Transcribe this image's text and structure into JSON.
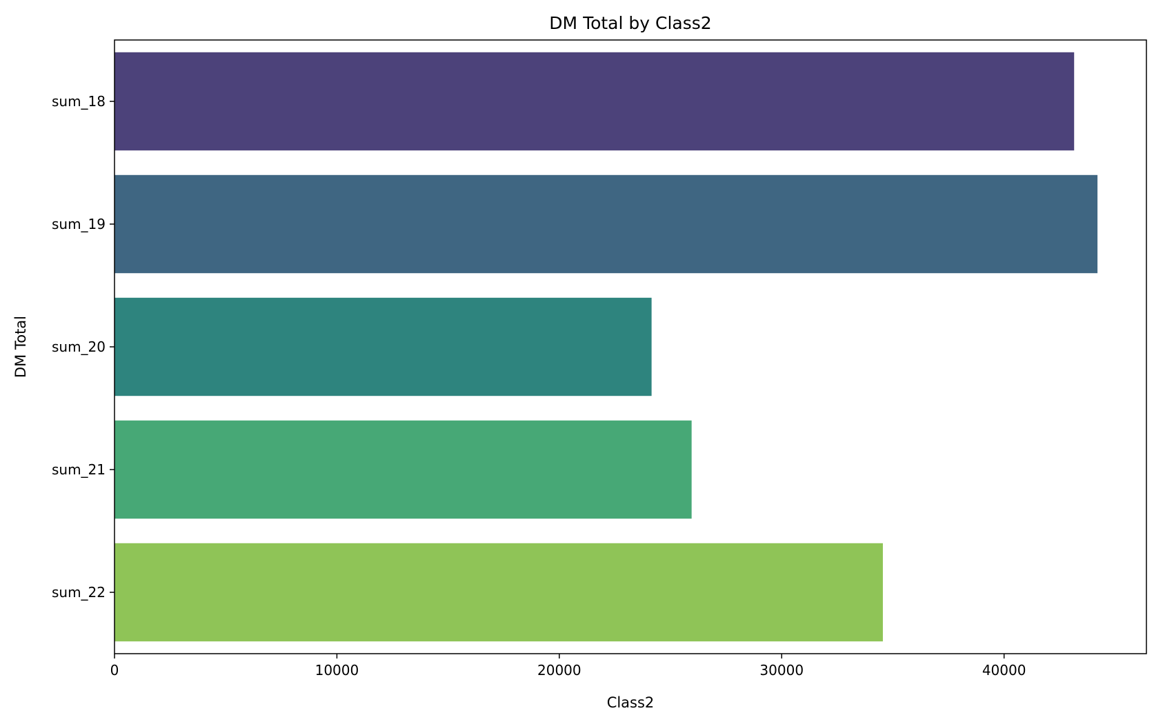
{
  "chart_data": {
    "type": "bar",
    "orientation": "horizontal",
    "title": "DM Total by Class2",
    "xlabel": "Class2",
    "ylabel": "DM Total",
    "categories": [
      "sum_18",
      "sum_19",
      "sum_20",
      "sum_21",
      "sum_22"
    ],
    "values": [
      43150,
      44200,
      24150,
      25950,
      34550
    ],
    "colors": [
      "#4c427a",
      "#3f6682",
      "#2e847e",
      "#47a876",
      "#8fc457"
    ],
    "xlim": [
      0,
      46400
    ],
    "xticks": [
      0,
      10000,
      20000,
      30000,
      40000
    ],
    "xtick_labels": [
      "0",
      "10000",
      "20000",
      "30000",
      "40000"
    ],
    "grid": false,
    "legend": "none"
  }
}
